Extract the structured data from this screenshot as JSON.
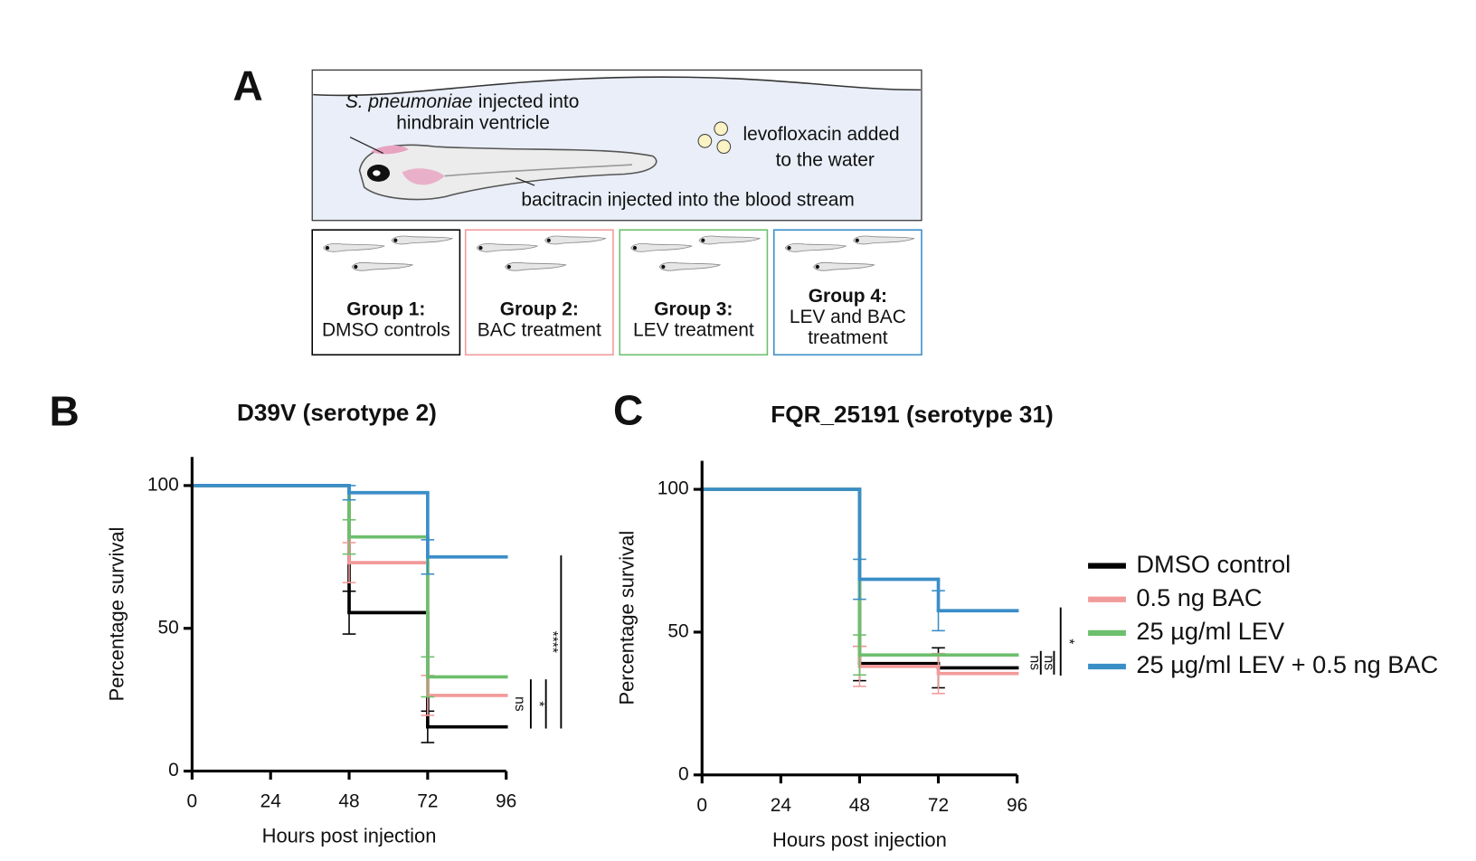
{
  "panel_a": {
    "label": "A",
    "hindbrain": {
      "species": "S. pneumoniae",
      "rest": "injected into",
      "line2": "hindbrain ventricle"
    },
    "levofloxacin": [
      "levofloxacin added",
      "to the water"
    ],
    "bacitracin": "bacitracin injected into the blood stream",
    "groups": [
      {
        "title": "Group 1:",
        "lines": [
          "DMSO controls"
        ],
        "color": "#000000"
      },
      {
        "title": "Group 2:",
        "lines": [
          "BAC treatment"
        ],
        "color": "#f29a9a"
      },
      {
        "title": "Group 3:",
        "lines": [
          "LEV treatment"
        ],
        "color": "#6cbf6c"
      },
      {
        "title": "Group 4:",
        "lines": [
          "LEV and BAC",
          "treatment"
        ],
        "color": "#3a8ec8"
      }
    ]
  },
  "chart_data": [
    {
      "type": "line",
      "panel_label": "B",
      "title": "D39V (serotype 2)",
      "x_label": "Hours post injection",
      "y_label": "Percentage survival",
      "x": [
        0,
        48,
        72,
        96
      ],
      "xlim": [
        0,
        96
      ],
      "xticks": [
        0,
        24,
        48,
        72,
        96
      ],
      "ylim": [
        0,
        110
      ],
      "yticks": [
        0,
        50,
        100
      ],
      "series": [
        {
          "color": "#000000",
          "values": [
            100,
            55.5,
            15.5,
            15.5
          ],
          "errors": [
            null,
            7.5,
            5.5,
            null
          ]
        },
        {
          "color": "#f29a9a",
          "values": [
            100,
            73,
            26.5,
            26.5
          ],
          "errors": [
            null,
            7,
            7,
            null
          ]
        },
        {
          "color": "#6cbf6c",
          "values": [
            100,
            82,
            33,
            33
          ],
          "errors": [
            null,
            6,
            7,
            null
          ]
        },
        {
          "color": "#3a8ec8",
          "values": [
            100,
            97.5,
            75,
            75
          ],
          "errors": [
            null,
            2.5,
            6,
            null
          ]
        }
      ],
      "annotations": [
        "ns",
        "*",
        "****"
      ]
    },
    {
      "type": "line",
      "panel_label": "C",
      "title": "FQR_25191 (serotype 31)",
      "x_label": "Hours post injection",
      "y_label": "Percentage survival",
      "x": [
        0,
        48,
        72,
        96
      ],
      "xlim": [
        0,
        96
      ],
      "xticks": [
        0,
        24,
        48,
        72,
        96
      ],
      "ylim": [
        0,
        110
      ],
      "yticks": [
        0,
        50,
        100
      ],
      "series": [
        {
          "name": "DMSO control",
          "color": "#000000",
          "values": [
            100,
            39,
            37.5,
            37.5
          ],
          "errors": [
            null,
            6,
            7,
            null
          ]
        },
        {
          "name": "0.5 ng BAC",
          "color": "#f29a9a",
          "values": [
            100,
            38,
            35.5,
            35.5
          ],
          "errors": [
            null,
            7,
            7,
            null
          ]
        },
        {
          "name": "25 µg/ml LEV",
          "color": "#6cbf6c",
          "values": [
            100,
            42,
            42,
            42
          ],
          "errors": [
            null,
            7,
            null,
            null
          ]
        },
        {
          "name": "25 µg/ml LEV + 0.5 ng BAC",
          "color": "#3a8ec8",
          "values": [
            100,
            68.5,
            57.5,
            57.5
          ],
          "errors": [
            null,
            7,
            7,
            null
          ]
        }
      ],
      "legend": "right",
      "annotations": [
        "ns",
        "ns",
        "*"
      ]
    }
  ]
}
